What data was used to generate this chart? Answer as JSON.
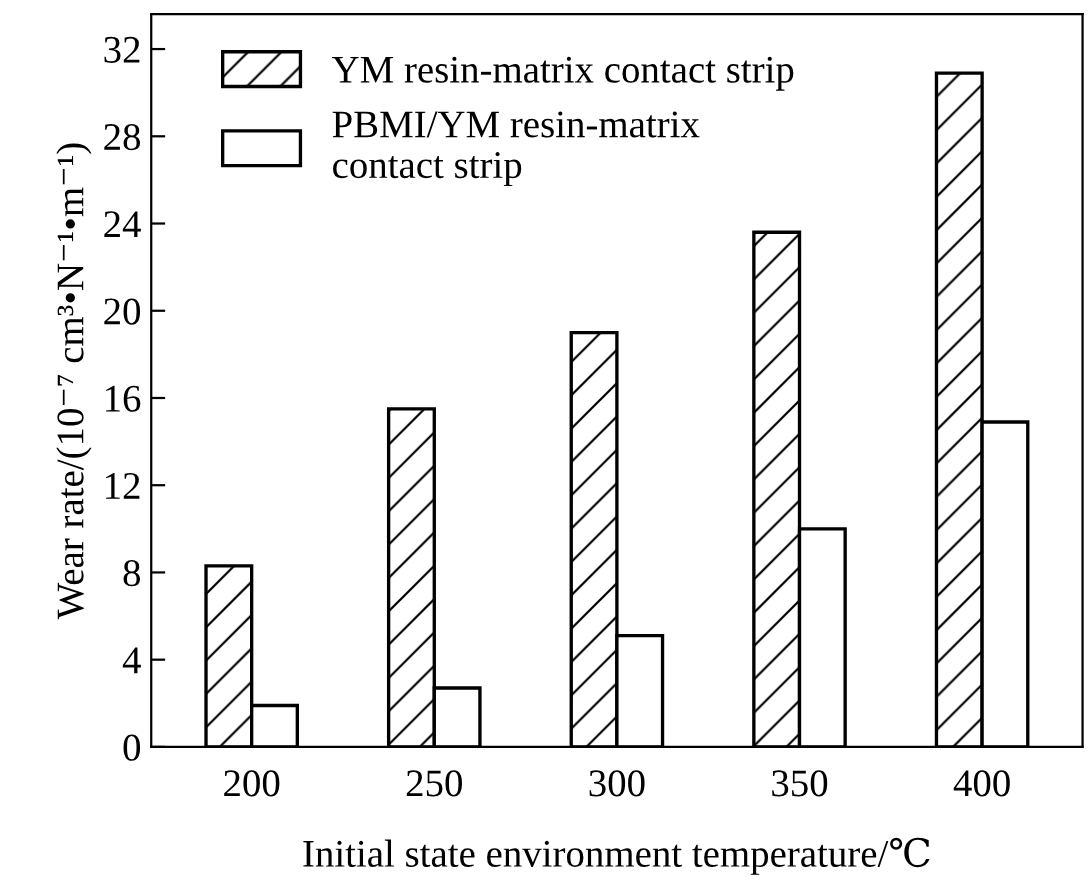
{
  "chart_data": {
    "type": "bar",
    "xlabel": "Initial state environment temperature/℃",
    "ylabel": "Wear rate/(10⁻⁷ cm³•N⁻¹•m⁻¹)",
    "categories": [
      "200",
      "250",
      "300",
      "350",
      "400"
    ],
    "series": [
      {
        "name": "YM resin-matrix contact strip",
        "color": "#000000",
        "values": [
          8.3,
          15.5,
          19.0,
          23.6,
          30.9
        ]
      },
      {
        "name": "PBMI/YM resin-matrix\ncontact strip",
        "color": "#ffffff",
        "values": [
          1.9,
          2.7,
          5.1,
          10.0,
          14.9
        ]
      }
    ],
    "ylim": [
      0,
      33.6
    ],
    "yticks": [
      0,
      4,
      8,
      12,
      16,
      20,
      24,
      28,
      32
    ],
    "grid": false,
    "legend": "top left"
  }
}
